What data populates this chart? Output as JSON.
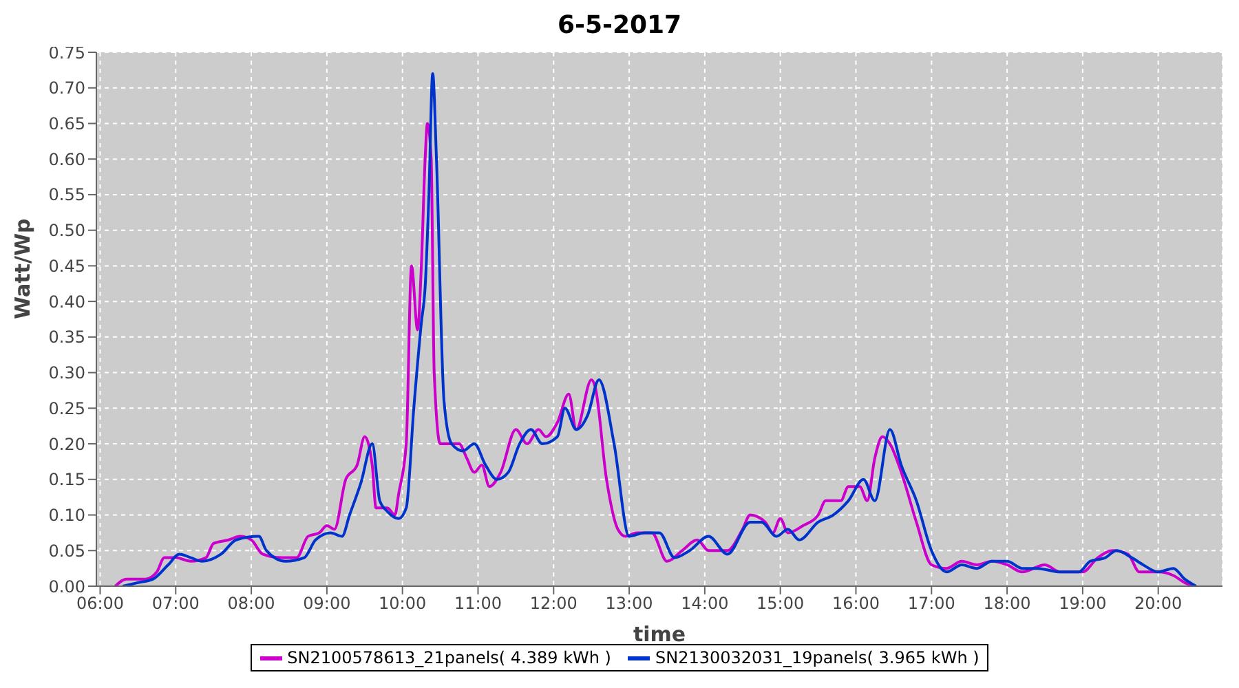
{
  "chart_data": {
    "type": "line",
    "title": "6-5-2017",
    "xlabel": "time",
    "ylabel": "Watt/Wp",
    "xlim": [
      5.95,
      20.85
    ],
    "ylim": [
      0,
      0.75
    ],
    "xticks": [
      {
        "value": 6,
        "label": "06:00"
      },
      {
        "value": 7,
        "label": "07:00"
      },
      {
        "value": 8,
        "label": "08:00"
      },
      {
        "value": 9,
        "label": "09:00"
      },
      {
        "value": 10,
        "label": "10:00"
      },
      {
        "value": 11,
        "label": "11:00"
      },
      {
        "value": 12,
        "label": "12:00"
      },
      {
        "value": 13,
        "label": "13:00"
      },
      {
        "value": 14,
        "label": "14:00"
      },
      {
        "value": 15,
        "label": "15:00"
      },
      {
        "value": 16,
        "label": "16:00"
      },
      {
        "value": 17,
        "label": "17:00"
      },
      {
        "value": 18,
        "label": "18:00"
      },
      {
        "value": 19,
        "label": "19:00"
      },
      {
        "value": 20,
        "label": "20:00"
      }
    ],
    "yticks": [
      {
        "value": 0,
        "label": "0.00"
      },
      {
        "value": 0.05,
        "label": "0.05"
      },
      {
        "value": 0.1,
        "label": "0.10"
      },
      {
        "value": 0.15,
        "label": "0.15"
      },
      {
        "value": 0.2,
        "label": "0.20"
      },
      {
        "value": 0.25,
        "label": "0.25"
      },
      {
        "value": 0.3,
        "label": "0.30"
      },
      {
        "value": 0.35,
        "label": "0.35"
      },
      {
        "value": 0.4,
        "label": "0.40"
      },
      {
        "value": 0.45,
        "label": "0.45"
      },
      {
        "value": 0.5,
        "label": "0.50"
      },
      {
        "value": 0.55,
        "label": "0.55"
      },
      {
        "value": 0.6,
        "label": "0.60"
      },
      {
        "value": 0.65,
        "label": "0.65"
      },
      {
        "value": 0.7,
        "label": "0.70"
      },
      {
        "value": 0.75,
        "label": "0.75"
      }
    ],
    "grid": true,
    "legend": "bottom",
    "marker": "none",
    "line_style": "solid",
    "series": [
      {
        "name": "SN2100578613_21panels( 4.389 kWh )",
        "color": "#cc00cc",
        "x": [
          6.2,
          6.35,
          6.6,
          6.75,
          6.85,
          7.0,
          7.2,
          7.4,
          7.5,
          7.7,
          7.85,
          8.0,
          8.15,
          8.4,
          8.6,
          8.75,
          8.9,
          9.0,
          9.1,
          9.25,
          9.4,
          9.5,
          9.6,
          9.65,
          9.8,
          9.9,
          9.95,
          10.05,
          10.12,
          10.2,
          10.25,
          10.3,
          10.33,
          10.38,
          10.42,
          10.5,
          10.65,
          10.75,
          10.85,
          10.95,
          11.05,
          11.15,
          11.3,
          11.5,
          11.65,
          11.8,
          11.9,
          12.05,
          12.2,
          12.3,
          12.5,
          12.55,
          12.7,
          12.85,
          12.95,
          13.1,
          13.3,
          13.5,
          13.7,
          13.9,
          14.05,
          14.3,
          14.5,
          14.6,
          14.8,
          14.9,
          15.0,
          15.1,
          15.3,
          15.5,
          15.6,
          15.8,
          15.9,
          16.05,
          16.15,
          16.25,
          16.35,
          16.45,
          16.6,
          16.8,
          17.0,
          17.2,
          17.4,
          17.6,
          17.8,
          18.0,
          18.2,
          18.5,
          18.7,
          19.0,
          19.2,
          19.4,
          19.6,
          19.75,
          20.0,
          20.2,
          20.35,
          20.5
        ],
        "values": [
          0,
          0.01,
          0.01,
          0.02,
          0.04,
          0.04,
          0.035,
          0.04,
          0.06,
          0.065,
          0.07,
          0.065,
          0.045,
          0.04,
          0.04,
          0.07,
          0.075,
          0.085,
          0.08,
          0.15,
          0.17,
          0.21,
          0.17,
          0.11,
          0.11,
          0.1,
          0.13,
          0.2,
          0.45,
          0.36,
          0.45,
          0.6,
          0.65,
          0.6,
          0.3,
          0.2,
          0.2,
          0.2,
          0.18,
          0.16,
          0.17,
          0.14,
          0.16,
          0.22,
          0.2,
          0.22,
          0.21,
          0.23,
          0.27,
          0.22,
          0.29,
          0.28,
          0.15,
          0.08,
          0.07,
          0.075,
          0.075,
          0.035,
          0.05,
          0.065,
          0.05,
          0.05,
          0.08,
          0.1,
          0.09,
          0.075,
          0.095,
          0.075,
          0.085,
          0.1,
          0.12,
          0.12,
          0.14,
          0.14,
          0.12,
          0.18,
          0.21,
          0.2,
          0.16,
          0.09,
          0.03,
          0.025,
          0.035,
          0.03,
          0.035,
          0.03,
          0.02,
          0.03,
          0.02,
          0.02,
          0.04,
          0.05,
          0.045,
          0.02,
          0.02,
          0.015,
          0.005,
          0
        ]
      },
      {
        "name": "SN2130032031_19panels( 3.965 kWh )",
        "color": "#0033cc",
        "x": [
          6.3,
          6.5,
          6.7,
          6.9,
          7.05,
          7.2,
          7.35,
          7.6,
          7.8,
          8.1,
          8.2,
          8.45,
          8.7,
          8.85,
          9.05,
          9.2,
          9.3,
          9.45,
          9.6,
          9.7,
          9.8,
          9.95,
          10.05,
          10.15,
          10.25,
          10.3,
          10.35,
          10.4,
          10.45,
          10.55,
          10.65,
          10.8,
          10.95,
          11.1,
          11.25,
          11.4,
          11.55,
          11.7,
          11.85,
          12.05,
          12.15,
          12.3,
          12.45,
          12.6,
          12.8,
          13.0,
          13.2,
          13.4,
          13.6,
          13.8,
          14.05,
          14.3,
          14.6,
          14.75,
          14.95,
          15.1,
          15.25,
          15.5,
          15.7,
          15.9,
          16.1,
          16.25,
          16.45,
          16.6,
          16.8,
          17.0,
          17.2,
          17.4,
          17.6,
          17.8,
          18.0,
          18.2,
          18.4,
          18.7,
          18.95,
          19.1,
          19.3,
          19.45,
          19.65,
          19.8,
          20.0,
          20.2,
          20.35,
          20.5
        ],
        "values": [
          0,
          0.005,
          0.01,
          0.03,
          0.045,
          0.04,
          0.035,
          0.045,
          0.065,
          0.07,
          0.05,
          0.035,
          0.04,
          0.065,
          0.075,
          0.07,
          0.1,
          0.145,
          0.2,
          0.12,
          0.105,
          0.095,
          0.11,
          0.25,
          0.37,
          0.42,
          0.55,
          0.72,
          0.6,
          0.26,
          0.2,
          0.19,
          0.2,
          0.17,
          0.15,
          0.16,
          0.2,
          0.22,
          0.2,
          0.21,
          0.25,
          0.22,
          0.24,
          0.29,
          0.2,
          0.07,
          0.075,
          0.075,
          0.04,
          0.05,
          0.07,
          0.045,
          0.09,
          0.09,
          0.07,
          0.08,
          0.065,
          0.09,
          0.1,
          0.12,
          0.15,
          0.12,
          0.22,
          0.17,
          0.12,
          0.05,
          0.02,
          0.03,
          0.025,
          0.035,
          0.035,
          0.025,
          0.025,
          0.02,
          0.02,
          0.035,
          0.04,
          0.05,
          0.04,
          0.03,
          0.02,
          0.025,
          0.01,
          0
        ]
      }
    ]
  }
}
